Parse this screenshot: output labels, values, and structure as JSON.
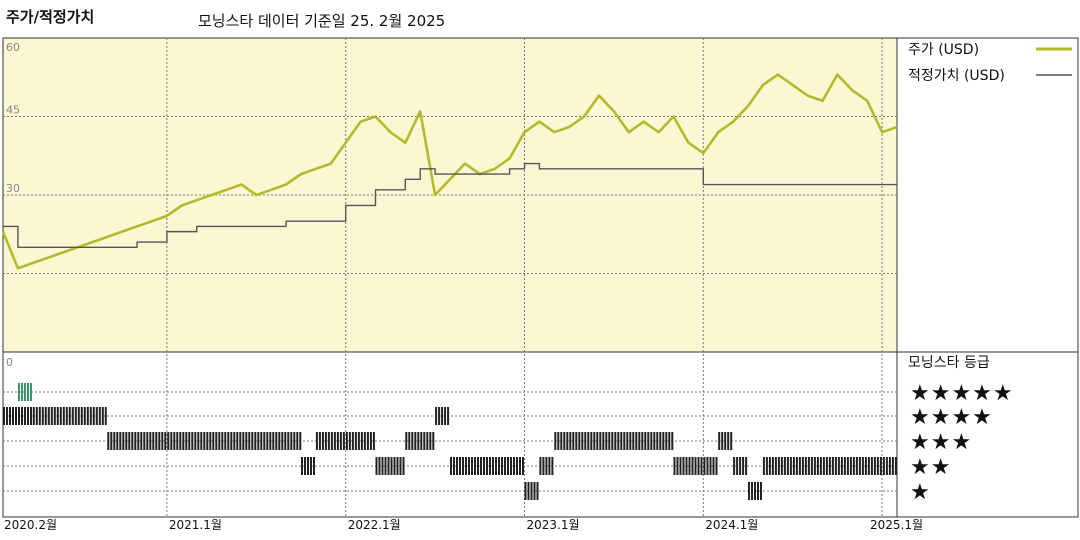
{
  "header": {
    "title": "주가/적정가치",
    "source_note": "모닝스타 데이터 기준일 25. 2월 2025"
  },
  "colors": {
    "plot_background": "#fbf7d3",
    "price_line": "#b5ba2d",
    "fair_value_line": "#555555",
    "five_star_bar": "#3a8f6b",
    "rating_bar": "#222222",
    "grid": "#777777"
  },
  "chart_data": [
    {
      "type": "line",
      "title": "",
      "xlabel": "",
      "ylabel": "",
      "ylim": [
        0,
        60
      ],
      "y_ticks": [
        "60",
        "45",
        "30"
      ],
      "x_ticks": [
        "2020.2월",
        "2021.1월",
        "2022.1월",
        "2023.1월",
        "2024.1월",
        "2025.1월"
      ],
      "x_range": [
        "2020-02",
        "2025-02"
      ],
      "grid": true,
      "legend": "right",
      "series": [
        {
          "name": "주가 (USD)",
          "x": [
            "2020-02",
            "2020-03",
            "2020-04",
            "2020-05",
            "2020-06",
            "2020-07",
            "2020-08",
            "2020-09",
            "2020-10",
            "2020-11",
            "2020-12",
            "2021-01",
            "2021-02",
            "2021-03",
            "2021-04",
            "2021-05",
            "2021-06",
            "2021-07",
            "2021-08",
            "2021-09",
            "2021-10",
            "2021-11",
            "2021-12",
            "2022-01",
            "2022-02",
            "2022-03",
            "2022-04",
            "2022-05",
            "2022-06",
            "2022-07",
            "2022-08",
            "2022-09",
            "2022-10",
            "2022-11",
            "2022-12",
            "2023-01",
            "2023-02",
            "2023-03",
            "2023-04",
            "2023-05",
            "2023-06",
            "2023-07",
            "2023-08",
            "2023-09",
            "2023-10",
            "2023-11",
            "2023-12",
            "2024-01",
            "2024-02",
            "2024-03",
            "2024-04",
            "2024-05",
            "2024-06",
            "2024-07",
            "2024-08",
            "2024-09",
            "2024-10",
            "2024-11",
            "2024-12",
            "2025-01",
            "2025-02"
          ],
          "values": [
            23,
            16,
            17,
            18,
            19,
            20,
            21,
            22,
            23,
            24,
            25,
            26,
            28,
            29,
            30,
            31,
            32,
            30,
            31,
            32,
            34,
            35,
            36,
            40,
            44,
            45,
            42,
            40,
            46,
            30,
            33,
            36,
            34,
            35,
            37,
            42,
            44,
            42,
            43,
            45,
            49,
            46,
            42,
            44,
            42,
            45,
            40,
            38,
            42,
            44,
            47,
            51,
            53,
            51,
            49,
            48,
            53,
            50,
            48,
            42,
            43
          ],
          "unit": "USD"
        },
        {
          "name": "적정가치 (USD)",
          "x": [
            "2020-02",
            "2020-03",
            "2020-05",
            "2020-08",
            "2020-11",
            "2021-01",
            "2021-03",
            "2021-06",
            "2021-09",
            "2021-11",
            "2022-01",
            "2022-03",
            "2022-05",
            "2022-06",
            "2022-07",
            "2022-08",
            "2022-10",
            "2022-11",
            "2022-12",
            "2023-01",
            "2023-02",
            "2023-03",
            "2023-05",
            "2023-06",
            "2023-10",
            "2023-12",
            "2024-01",
            "2024-03",
            "2024-06",
            "2024-09",
            "2024-12",
            "2025-02"
          ],
          "values": [
            24,
            20,
            20,
            20,
            21,
            23,
            24,
            24,
            25,
            25,
            28,
            31,
            33,
            35,
            34,
            34,
            34,
            34,
            35,
            36,
            35,
            35,
            35,
            35,
            35,
            35,
            32,
            32,
            32,
            32,
            32,
            32
          ],
          "unit": "USD"
        }
      ]
    },
    {
      "type": "bar",
      "title": "모닝스타 등급",
      "categories": [
        "★★★★★",
        "★★★★",
        "★★★",
        "★★",
        "★"
      ],
      "y_label_top": "0",
      "ratings_timeline": [
        {
          "from": "2020-02",
          "to": "2020-04",
          "stars": 4
        },
        {
          "from": "2020-03",
          "to": "2020-04",
          "stars": 5
        },
        {
          "from": "2020-04",
          "to": "2020-09",
          "stars": 4
        },
        {
          "from": "2020-09",
          "to": "2021-10",
          "stars": 3
        },
        {
          "from": "2021-10",
          "to": "2021-11",
          "stars": 2
        },
        {
          "from": "2021-11",
          "to": "2022-03",
          "stars": 3
        },
        {
          "from": "2022-03",
          "to": "2022-05",
          "stars": 2
        },
        {
          "from": "2022-05",
          "to": "2022-07",
          "stars": 3
        },
        {
          "from": "2022-07",
          "to": "2022-08",
          "stars": 4
        },
        {
          "from": "2022-08",
          "to": "2023-01",
          "stars": 2
        },
        {
          "from": "2023-01",
          "to": "2023-02",
          "stars": 1
        },
        {
          "from": "2023-02",
          "to": "2023-03",
          "stars": 2
        },
        {
          "from": "2023-03",
          "to": "2023-11",
          "stars": 3
        },
        {
          "from": "2023-11",
          "to": "2024-02",
          "stars": 2
        },
        {
          "from": "2024-02",
          "to": "2024-03",
          "stars": 3
        },
        {
          "from": "2024-03",
          "to": "2024-04",
          "stars": 2
        },
        {
          "from": "2024-04",
          "to": "2024-05",
          "stars": 1
        },
        {
          "from": "2024-05",
          "to": "2025-02",
          "stars": 2
        }
      ]
    }
  ]
}
